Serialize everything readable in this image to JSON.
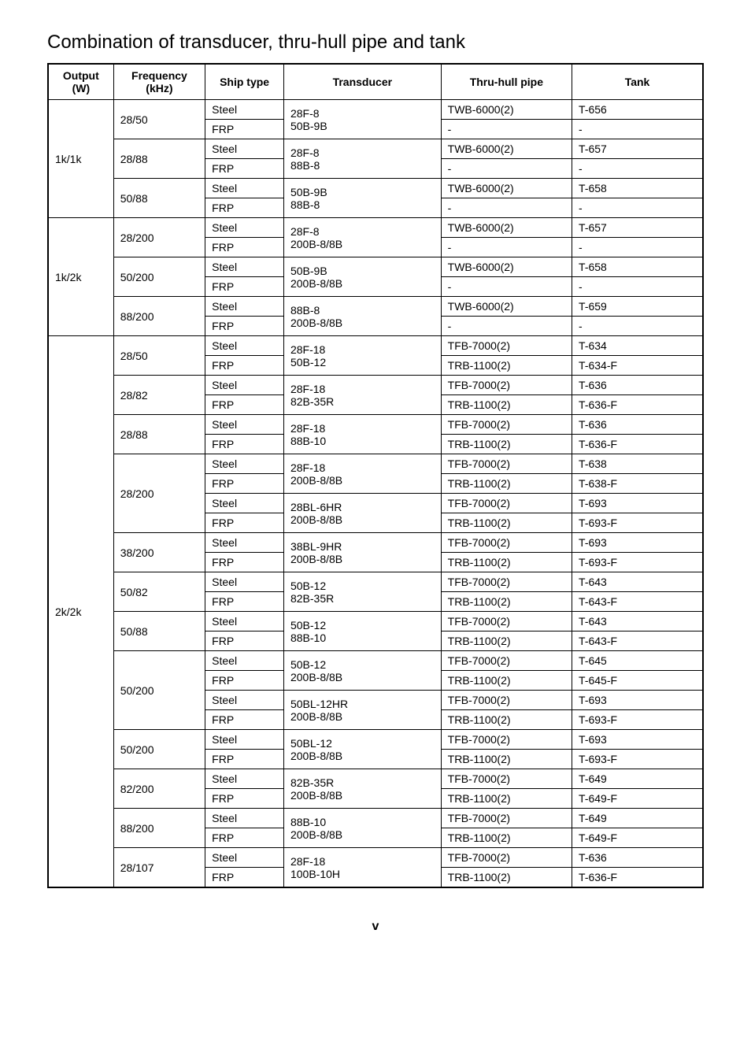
{
  "title": "Combination of transducer, thru-hull pipe and tank",
  "headers": {
    "output": "Output (W)",
    "frequency": "Frequency (kHz)",
    "ship_type": "Ship type",
    "transducer": "Transducer",
    "thru_hull": "Thru-hull pipe",
    "tank": "Tank"
  },
  "groups": [
    {
      "output": "1k/1k",
      "freqs": [
        {
          "freq": "28/50",
          "transducer": "28F-8\n50B-9B",
          "ships": [
            {
              "ship": "Steel",
              "thru": "TWB-6000(2)",
              "tank": "T-656"
            },
            {
              "ship": "FRP",
              "thru": "-",
              "tank": "-"
            }
          ]
        },
        {
          "freq": "28/88",
          "transducer": "28F-8\n88B-8",
          "ships": [
            {
              "ship": "Steel",
              "thru": "TWB-6000(2)",
              "tank": "T-657"
            },
            {
              "ship": "FRP",
              "thru": "-",
              "tank": "-"
            }
          ]
        },
        {
          "freq": "50/88",
          "transducer": "50B-9B\n88B-8",
          "ships": [
            {
              "ship": "Steel",
              "thru": "TWB-6000(2)",
              "tank": "T-658"
            },
            {
              "ship": "FRP",
              "thru": "-",
              "tank": "-"
            }
          ]
        }
      ]
    },
    {
      "output": "1k/2k",
      "freqs": [
        {
          "freq": "28/200",
          "transducer": "28F-8\n200B-8/8B",
          "ships": [
            {
              "ship": "Steel",
              "thru": "TWB-6000(2)",
              "tank": "T-657"
            },
            {
              "ship": "FRP",
              "thru": "-",
              "tank": "-"
            }
          ]
        },
        {
          "freq": "50/200",
          "transducer": "50B-9B\n200B-8/8B",
          "ships": [
            {
              "ship": "Steel",
              "thru": "TWB-6000(2)",
              "tank": "T-658"
            },
            {
              "ship": "FRP",
              "thru": "-",
              "tank": "-"
            }
          ]
        },
        {
          "freq": "88/200",
          "transducer": "88B-8\n200B-8/8B",
          "ships": [
            {
              "ship": "Steel",
              "thru": "TWB-6000(2)",
              "tank": "T-659"
            },
            {
              "ship": "FRP",
              "thru": "-",
              "tank": "-"
            }
          ]
        }
      ]
    },
    {
      "output": "2k/2k",
      "freqs": [
        {
          "freq": "28/50",
          "transducer": "28F-18\n50B-12",
          "ships": [
            {
              "ship": "Steel",
              "thru": "TFB-7000(2)",
              "tank": "T-634"
            },
            {
              "ship": "FRP",
              "thru": "TRB-1100(2)",
              "tank": "T-634-F"
            }
          ]
        },
        {
          "freq": "28/82",
          "transducer": "28F-18\n82B-35R",
          "ships": [
            {
              "ship": "Steel",
              "thru": "TFB-7000(2)",
              "tank": "T-636"
            },
            {
              "ship": "FRP",
              "thru": "TRB-1100(2)",
              "tank": "T-636-F"
            }
          ]
        },
        {
          "freq": "28/88",
          "transducer": "28F-18\n88B-10",
          "ships": [
            {
              "ship": "Steel",
              "thru": "TFB-7000(2)",
              "tank": "T-636"
            },
            {
              "ship": "FRP",
              "thru": "TRB-1100(2)",
              "tank": "T-636-F"
            }
          ]
        },
        {
          "freq": "28/200",
          "blocks": [
            {
              "transducer": "28F-18\n200B-8/8B",
              "ships": [
                {
                  "ship": "Steel",
                  "thru": "TFB-7000(2)",
                  "tank": "T-638"
                },
                {
                  "ship": "FRP",
                  "thru": "TRB-1100(2)",
                  "tank": "T-638-F"
                }
              ]
            },
            {
              "transducer": "28BL-6HR\n200B-8/8B",
              "ships": [
                {
                  "ship": "Steel",
                  "thru": "TFB-7000(2)",
                  "tank": "T-693"
                },
                {
                  "ship": "FRP",
                  "thru": "TRB-1100(2)",
                  "tank": "T-693-F"
                }
              ]
            }
          ]
        },
        {
          "freq": "38/200",
          "transducer": "38BL-9HR\n200B-8/8B",
          "ships": [
            {
              "ship": "Steel",
              "thru": "TFB-7000(2)",
              "tank": "T-693"
            },
            {
              "ship": "FRP",
              "thru": "TRB-1100(2)",
              "tank": "T-693-F"
            }
          ]
        },
        {
          "freq": "50/82",
          "transducer": "50B-12\n82B-35R",
          "ships": [
            {
              "ship": "Steel",
              "thru": "TFB-7000(2)",
              "tank": "T-643"
            },
            {
              "ship": "FRP",
              "thru": "TRB-1100(2)",
              "tank": "T-643-F"
            }
          ]
        },
        {
          "freq": "50/88",
          "transducer": "50B-12\n88B-10",
          "ships": [
            {
              "ship": "Steel",
              "thru": "TFB-7000(2)",
              "tank": "T-643"
            },
            {
              "ship": "FRP",
              "thru": "TRB-1100(2)",
              "tank": "T-643-F"
            }
          ]
        },
        {
          "freq": "50/200",
          "blocks": [
            {
              "transducer": "50B-12\n200B-8/8B",
              "ships": [
                {
                  "ship": "Steel",
                  "thru": "TFB-7000(2)",
                  "tank": "T-645"
                },
                {
                  "ship": "FRP",
                  "thru": "TRB-1100(2)",
                  "tank": "T-645-F"
                }
              ]
            },
            {
              "transducer": "50BL-12HR\n200B-8/8B",
              "ships": [
                {
                  "ship": "Steel",
                  "thru": "TFB-7000(2)",
                  "tank": "T-693"
                },
                {
                  "ship": "FRP",
                  "thru": "TRB-1100(2)",
                  "tank": "T-693-F"
                }
              ]
            }
          ]
        },
        {
          "freq": "50/200",
          "transducer": "50BL-12\n200B-8/8B",
          "ships": [
            {
              "ship": "Steel",
              "thru": "TFB-7000(2)",
              "tank": "T-693"
            },
            {
              "ship": "FRP",
              "thru": "TRB-1100(2)",
              "tank": "T-693-F"
            }
          ]
        },
        {
          "freq": "82/200",
          "transducer": "82B-35R\n200B-8/8B",
          "ships": [
            {
              "ship": "Steel",
              "thru": "TFB-7000(2)",
              "tank": "T-649"
            },
            {
              "ship": "FRP",
              "thru": "TRB-1100(2)",
              "tank": "T-649-F"
            }
          ]
        },
        {
          "freq": "88/200",
          "transducer": "88B-10\n200B-8/8B",
          "ships": [
            {
              "ship": "Steel",
              "thru": "TFB-7000(2)",
              "tank": "T-649"
            },
            {
              "ship": "FRP",
              "thru": "TRB-1100(2)",
              "tank": "T-649-F"
            }
          ]
        },
        {
          "freq": "28/107",
          "transducer": "28F-18\n100B-10H",
          "ships": [
            {
              "ship": "Steel",
              "thru": "TFB-7000(2)",
              "tank": "T-636"
            },
            {
              "ship": "FRP",
              "thru": "TRB-1100(2)",
              "tank": "T-636-F"
            }
          ]
        }
      ]
    }
  ],
  "page_number": "v"
}
